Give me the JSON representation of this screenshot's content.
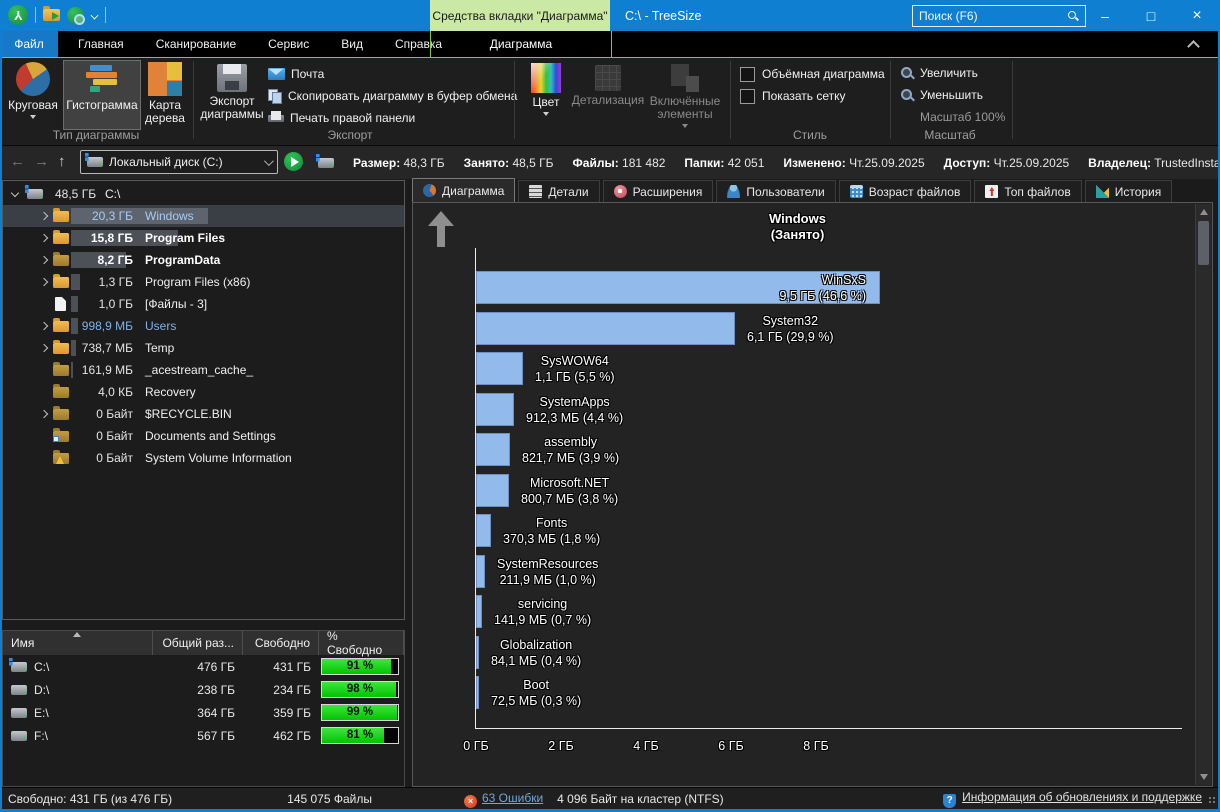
{
  "colors": {
    "titlebar_blue": "#0f7fd2",
    "accent_green": "#84c53c",
    "context_header_green": "#cce8a5",
    "chart_bar_blue": "#92bbec",
    "free_bar_green": "#00d800"
  },
  "titlebar": {
    "context_header": "Средства вкладки \"Диаграмма\"",
    "title": "C:\\ - TreeSize",
    "search_placeholder": "Поиск (F6)",
    "controls": {
      "minimize": "–",
      "maximize": "□",
      "close": "×"
    }
  },
  "menu": {
    "file_tab": "Файл",
    "tabs": [
      "Главная",
      "Сканирование",
      "Сервис",
      "Вид",
      "Справка"
    ],
    "context_tab": "Диаграмма"
  },
  "ribbon": {
    "chart_type_group": {
      "label": "Тип диаграммы",
      "pie": "Круговая",
      "histogram": "Гистограмма",
      "treemap": "Карта дерева"
    },
    "export_group": {
      "label": "Экспорт",
      "export_chart": "Экспорт диаграммы",
      "mail": "Почта",
      "copy": "Скопировать диаграмму в буфер обмена",
      "print": "Печать правой панели"
    },
    "display_group": {
      "color": "Цвет",
      "detail": "Детализация",
      "included": "Включённые элементы"
    },
    "style_group": {
      "label": "Стиль",
      "volumetric": "Объёмная диаграмма",
      "show_grid": "Показать сетку"
    },
    "zoom_group": {
      "label": "Масштаб",
      "zoom_in": "Увеличить",
      "zoom_out": "Уменьшить",
      "scale": "Масштаб 100%"
    }
  },
  "addressbar": {
    "combo_value": "Локальный диск (C:)",
    "stats": [
      {
        "label": "Размер:",
        "value": "48,3 ГБ"
      },
      {
        "label": "Занято:",
        "value": "48,5 ГБ"
      },
      {
        "label": "Файлы:",
        "value": "181 482"
      },
      {
        "label": "Папки:",
        "value": "42 051"
      },
      {
        "label": "Изменено:",
        "value": "Чт.25.09.2025"
      },
      {
        "label": "Доступ:",
        "value": "Чт.25.09.2025"
      },
      {
        "label": "Владелец:",
        "value": "TrustedInstaller"
      }
    ]
  },
  "tree": {
    "items": [
      {
        "size": "48,5 ГБ",
        "name": "C:\\",
        "gb": 48.5,
        "icon": "drive-win",
        "chevron": "down",
        "root": true
      },
      {
        "size": "20,3 ГБ",
        "name": "Windows",
        "gb": 20.3,
        "icon": "folder",
        "chevron": "right",
        "selected": true,
        "blue": true
      },
      {
        "size": "15,8 ГБ",
        "name": "Program Files",
        "gb": 15.8,
        "icon": "folder",
        "chevron": "right",
        "bold": true
      },
      {
        "size": "8,2 ГБ",
        "name": "ProgramData",
        "gb": 8.2,
        "icon": "folder-dark",
        "chevron": "right",
        "bold": true
      },
      {
        "size": "1,3 ГБ",
        "name": "Program Files (x86)",
        "gb": 1.3,
        "icon": "folder",
        "chevron": "right"
      },
      {
        "size": "1,0 ГБ",
        "name": "[Файлы - 3]",
        "gb": 1.0,
        "icon": "file"
      },
      {
        "size": "998,9 МБ",
        "name": "Users",
        "gb": 0.98,
        "icon": "folder",
        "chevron": "right",
        "blue": true
      },
      {
        "size": "738,7 МБ",
        "name": "Temp",
        "gb": 0.72,
        "icon": "folder",
        "chevron": "right"
      },
      {
        "size": "161,9 МБ",
        "name": "_acestream_cache_",
        "gb": 0.16,
        "icon": "folder-dark"
      },
      {
        "size": "4,0 КБ",
        "name": "Recovery",
        "gb": 0,
        "icon": "folder-dark"
      },
      {
        "size": "0 Байт",
        "name": "$RECYCLE.BIN",
        "gb": 0,
        "icon": "folder-dark",
        "chevron": "right"
      },
      {
        "size": "0 Байт",
        "name": "Documents and Settings",
        "gb": 0,
        "icon": "folder-link"
      },
      {
        "size": "0 Байт",
        "name": "System Volume Information",
        "gb": 0,
        "icon": "folder-warn"
      }
    ]
  },
  "drives": {
    "columns": [
      "Имя",
      "Общий раз...",
      "Свободно",
      "% Свободно"
    ],
    "rows": [
      {
        "name": "C:\\",
        "total": "476 ГБ",
        "free": "431 ГБ",
        "pct": 91,
        "pct_label": "91 %",
        "icon": "drive-win"
      },
      {
        "name": "D:\\",
        "total": "238 ГБ",
        "free": "234 ГБ",
        "pct": 98,
        "pct_label": "98 %",
        "icon": "drive"
      },
      {
        "name": "E:\\",
        "total": "364 ГБ",
        "free": "359 ГБ",
        "pct": 99,
        "pct_label": "99 %",
        "icon": "drive"
      },
      {
        "name": "F:\\",
        "total": "567 ГБ",
        "free": "462 ГБ",
        "pct": 81,
        "pct_label": "81 %",
        "icon": "drive"
      }
    ]
  },
  "right_tabs": [
    {
      "label": "Диаграмма",
      "icon": "pie",
      "active": true
    },
    {
      "label": "Детали",
      "icon": "details"
    },
    {
      "label": "Расширения",
      "icon": "ext"
    },
    {
      "label": "Пользователи",
      "icon": "users"
    },
    {
      "label": "Возраст файлов",
      "icon": "ages"
    },
    {
      "label": "Топ файлов",
      "icon": "top"
    },
    {
      "label": "История",
      "icon": "history"
    }
  ],
  "chart_data": {
    "type": "bar",
    "orientation": "horizontal",
    "title": "Windows",
    "subtitle": "(Занято)",
    "categories": [
      "WinSxS",
      "System32",
      "SysWOW64",
      "SystemApps",
      "assembly",
      "Microsoft.NET",
      "Fonts",
      "SystemResources",
      "servicing",
      "Globalization",
      "Boot"
    ],
    "values_gb": [
      9.5,
      6.1,
      1.1,
      0.891,
      0.802,
      0.782,
      0.362,
      0.207,
      0.139,
      0.082,
      0.071
    ],
    "size_labels": [
      "9,5 ГБ (46,6 %)",
      "6,1 ГБ (29,9 %)",
      "1,1 ГБ (5,5 %)",
      "912,3 МБ (4,4 %)",
      "821,7 МБ (3,9 %)",
      "800,7 МБ (3,8 %)",
      "370,3 МБ (1,8 %)",
      "211,9 МБ (1,0 %)",
      "141,9 МБ (0,7 %)",
      "84,1 МБ (0,4 %)",
      "72,5 МБ (0,3 %)"
    ],
    "x_ticks": [
      "0 ГБ",
      "2 ГБ",
      "4 ГБ",
      "6 ГБ",
      "8 ГБ"
    ],
    "x_tick_step_gb": 2,
    "xlim": [
      0,
      9.8
    ],
    "grid": false,
    "legend": false,
    "bar_color": "#92bbec",
    "label_inside_first_bar": true
  },
  "statusbar": {
    "free": "Свободно: 431 ГБ  (из 476 ГБ)",
    "files": "145 075 Файлы",
    "errors_link": "63 Ошибки",
    "cluster": "4 096 Байт на кластер (NTFS)",
    "info_link": "Информация об обновлениях и поддержке"
  }
}
